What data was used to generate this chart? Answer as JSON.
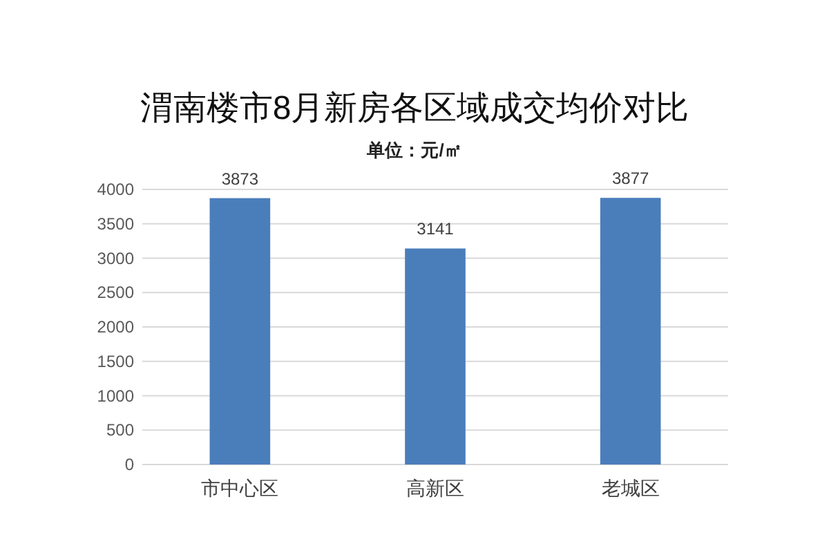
{
  "chart_data": {
    "type": "bar",
    "title": "渭南楼市8月新房各区域成交均价对比",
    "subtitle": "单位：元/㎡",
    "categories": [
      "市中心区",
      "高新区",
      "老城区"
    ],
    "values": [
      3873,
      3141,
      3877
    ],
    "color": "#4a7ebb",
    "ylim": [
      0,
      4000
    ],
    "yticks": [
      0,
      500,
      1000,
      1500,
      2000,
      2500,
      3000,
      3500,
      4000
    ],
    "grid": "y",
    "data_labels": true
  }
}
